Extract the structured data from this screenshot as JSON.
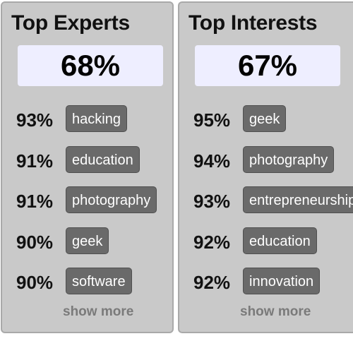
{
  "experts": {
    "title": "Top Experts",
    "score": "68%",
    "items": [
      {
        "percent": "93%",
        "tag": "hacking"
      },
      {
        "percent": "91%",
        "tag": "education"
      },
      {
        "percent": "91%",
        "tag": "photography"
      },
      {
        "percent": "90%",
        "tag": "geek"
      },
      {
        "percent": "90%",
        "tag": "software"
      }
    ],
    "show_more": "show more"
  },
  "interests": {
    "title": "Top Interests",
    "score": "67%",
    "items": [
      {
        "percent": "95%",
        "tag": "geek"
      },
      {
        "percent": "94%",
        "tag": "photography"
      },
      {
        "percent": "93%",
        "tag": "entrepreneurship"
      },
      {
        "percent": "92%",
        "tag": "education"
      },
      {
        "percent": "92%",
        "tag": "innovation"
      }
    ],
    "show_more": "show more"
  },
  "colors": {
    "panel_bg": "#c9c9c9",
    "score_bg": "#eeeeff",
    "tag_bg": "#6a6a6a",
    "show_more": "#7a7a7a"
  }
}
